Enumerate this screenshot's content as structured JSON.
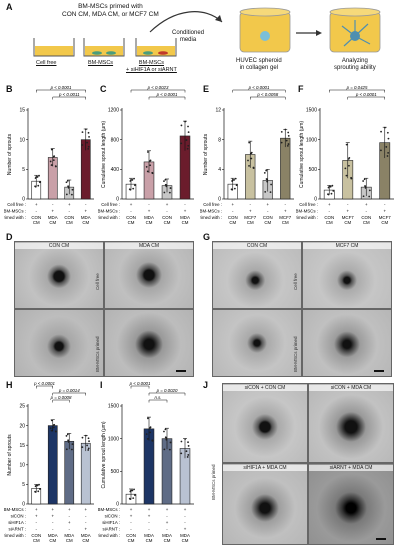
{
  "panel_letters": {
    "A": "A",
    "B": "B",
    "C": "C",
    "D": "D",
    "E": "E",
    "F": "F",
    "G": "G",
    "H": "H",
    "I": "I",
    "J": "J"
  },
  "schematic": {
    "title": "BM-MSCs primed with\nCON CM, MDA CM, or MCF7 CM",
    "dish1": "Cell free",
    "dish2": "BM-MSCs",
    "dish3": "BM-MSCs\n+ siHIF1A or siARNT",
    "conditioned": "Conditioned\nmedia",
    "huvec": "HUVEC spheroid\nin collagen gel",
    "analyzing": "Analyzing\nsprouting ability"
  },
  "colors": {
    "white_bar": "#ffffff",
    "light_bar": "#c7c7c7",
    "maroon": "#6b1c2c",
    "pink": "#c9a0a8",
    "khaki": "#c8c1a0",
    "olive": "#8a8266",
    "navy": "#1d3565",
    "slate": "#5f6c86",
    "lightslate": "#b9c2d2",
    "yellow": "#f2c84b",
    "cyan": "#7bbfd9"
  },
  "micro_D": {
    "col1": "CON CM",
    "col2": "MDA CM",
    "row1": "Cell free",
    "row2": "BM-MSCs primed"
  },
  "micro_G": {
    "col1": "CON CM",
    "col2": "MCF7 CM",
    "row1": "Cell free",
    "row2": "BM-MSCs primed"
  },
  "micro_J": {
    "p1": "siCON + CON CM",
    "p2": "siCON + MDA CM",
    "p3": "siHIF1A + MDA CM",
    "p4": "siARNT + MDA CM",
    "row": "BM-MSCs primed"
  },
  "chart_data": [
    {
      "panel": "B",
      "type": "bar",
      "ylabel": "Number of sprouts",
      "ylim": [
        0,
        15
      ],
      "yticks": [
        0,
        5,
        10,
        15
      ],
      "values": [
        3,
        7,
        2,
        10
      ],
      "errors": [
        1,
        1.5,
        1.2,
        1.8
      ],
      "pvals": [
        {
          "from": 0,
          "to": 3,
          "text": "p < 0.0001"
        },
        {
          "from": 1,
          "to": 3,
          "text": "p < 0.0011"
        }
      ],
      "rows": [
        {
          "label": "Cell free :",
          "cells": [
            "+",
            "-",
            "+",
            "-"
          ]
        },
        {
          "label": "BM-MSCs :",
          "cells": [
            "-",
            "+",
            "-",
            "+"
          ]
        },
        {
          "label": "primed with :",
          "cells": [
            "CON\nCM",
            "MDA\nCM",
            "CON\nCM",
            "MDA\nCM"
          ]
        }
      ]
    },
    {
      "panel": "C",
      "type": "bar",
      "ylabel": "Cumulative sprout length (μm)",
      "ylim": [
        0,
        1200
      ],
      "yticks": [
        0,
        400,
        800,
        1200
      ],
      "values": [
        200,
        500,
        180,
        850
      ],
      "errors": [
        80,
        150,
        90,
        200
      ],
      "pvals": [
        {
          "from": 0,
          "to": 3,
          "text": "p < 0.0023"
        },
        {
          "from": 1,
          "to": 3,
          "text": "p < 0.0001"
        }
      ],
      "rows": [
        {
          "label": "Cell free :",
          "cells": [
            "+",
            "-",
            "+",
            "-"
          ]
        },
        {
          "label": "BM-MSCs :",
          "cells": [
            "-",
            "+",
            "-",
            "+"
          ]
        },
        {
          "label": "primed with :",
          "cells": [
            "CON\nCM",
            "MDA\nCM",
            "CON\nCM",
            "MDA\nCM"
          ]
        }
      ]
    },
    {
      "panel": "E",
      "type": "bar",
      "ylabel": "Number of sprouts",
      "ylim": [
        0,
        12
      ],
      "yticks": [
        0,
        4,
        8,
        12
      ],
      "values": [
        2,
        6,
        2.5,
        8.2
      ],
      "errors": [
        0.8,
        1.8,
        1.5,
        1.2
      ],
      "pvals": [
        {
          "from": 0,
          "to": 3,
          "text": "p < 0.0001"
        },
        {
          "from": 1,
          "to": 3,
          "text": "p < 0.0058"
        }
      ],
      "rows": [
        {
          "label": "Cell free :",
          "cells": [
            "+",
            "-",
            "+",
            "-"
          ]
        },
        {
          "label": "BM-MSCs :",
          "cells": [
            "-",
            "+",
            "-",
            "+"
          ]
        },
        {
          "label": "primed with :",
          "cells": [
            "CON\nCM",
            "MCF7\nCM",
            "CON\nCM",
            "MCF7\nCM"
          ]
        }
      ]
    },
    {
      "panel": "F",
      "type": "bar",
      "ylabel": "Cumulative sprout length (μm)",
      "ylim": [
        0,
        1500
      ],
      "yticks": [
        0,
        500,
        1000,
        1500
      ],
      "values": [
        150,
        650,
        200,
        950
      ],
      "errors": [
        80,
        300,
        150,
        260
      ],
      "pvals": [
        {
          "from": 0,
          "to": 3,
          "text": "p = 0.0425"
        },
        {
          "from": 1,
          "to": 3,
          "text": "p < 0.0001"
        }
      ],
      "rows": [
        {
          "label": "Cell free :",
          "cells": [
            "+",
            "-",
            "+",
            "-"
          ]
        },
        {
          "label": "BM-MSCs :",
          "cells": [
            "-",
            "+",
            "-",
            "+"
          ]
        },
        {
          "label": "primed with :",
          "cells": [
            "CON\nCM",
            "MCF7\nCM",
            "CON\nCM",
            "MCF7\nCM"
          ]
        }
      ]
    },
    {
      "panel": "H",
      "type": "bar",
      "ylabel": "Number of sprouts",
      "ylim": [
        0,
        25
      ],
      "yticks": [
        0,
        5,
        10,
        15,
        20,
        25
      ],
      "values": [
        4,
        20,
        16,
        15.5
      ],
      "errors": [
        1,
        1.5,
        2,
        2
      ],
      "pvals": [
        {
          "from": 0,
          "to": 1,
          "text": "p < 0.0001"
        },
        {
          "from": 1,
          "to": 3,
          "text": "p = 0.0014"
        },
        {
          "from": 1,
          "to": 2,
          "text": "p = 0.0008"
        }
      ],
      "rows": [
        {
          "label": "BM-MSCs :",
          "cells": [
            "+",
            "+",
            "+",
            "+"
          ]
        },
        {
          "label": "siCON :",
          "cells": [
            "+",
            "+",
            "-",
            "-"
          ]
        },
        {
          "label": "siHIF1A :",
          "cells": [
            "-",
            "-",
            "+",
            "-"
          ]
        },
        {
          "label": "siARNT :",
          "cells": [
            "-",
            "-",
            "-",
            "+"
          ]
        },
        {
          "label": "primed with :",
          "cells": [
            "CON\nCM",
            "MDA\nCM",
            "MDA\nCM",
            "MDA\nCM"
          ]
        }
      ]
    },
    {
      "panel": "I",
      "type": "bar",
      "ylabel": "Cumulative sprout length (μm)",
      "ylim": [
        0,
        1500
      ],
      "yticks": [
        0,
        500,
        1000,
        1500
      ],
      "values": [
        150,
        1150,
        1000,
        850
      ],
      "errors": [
        80,
        180,
        160,
        150
      ],
      "pvals": [
        {
          "from": 0,
          "to": 1,
          "text": "p < 0.0001"
        },
        {
          "from": 1,
          "to": 3,
          "text": "p = 0.0020"
        },
        {
          "from": 1,
          "to": 2,
          "text": "n.s."
        }
      ],
      "rows": [
        {
          "label": "BM-MSCs :",
          "cells": [
            "+",
            "+",
            "+",
            "+"
          ]
        },
        {
          "label": "siCON :",
          "cells": [
            "+",
            "+",
            "-",
            "-"
          ]
        },
        {
          "label": "siHIF1A :",
          "cells": [
            "-",
            "-",
            "+",
            "-"
          ]
        },
        {
          "label": "siARNT :",
          "cells": [
            "-",
            "-",
            "-",
            "+"
          ]
        },
        {
          "label": "primed with :",
          "cells": [
            "CON\nCM",
            "MDA\nCM",
            "MDA\nCM",
            "MDA\nCM"
          ]
        }
      ]
    }
  ]
}
